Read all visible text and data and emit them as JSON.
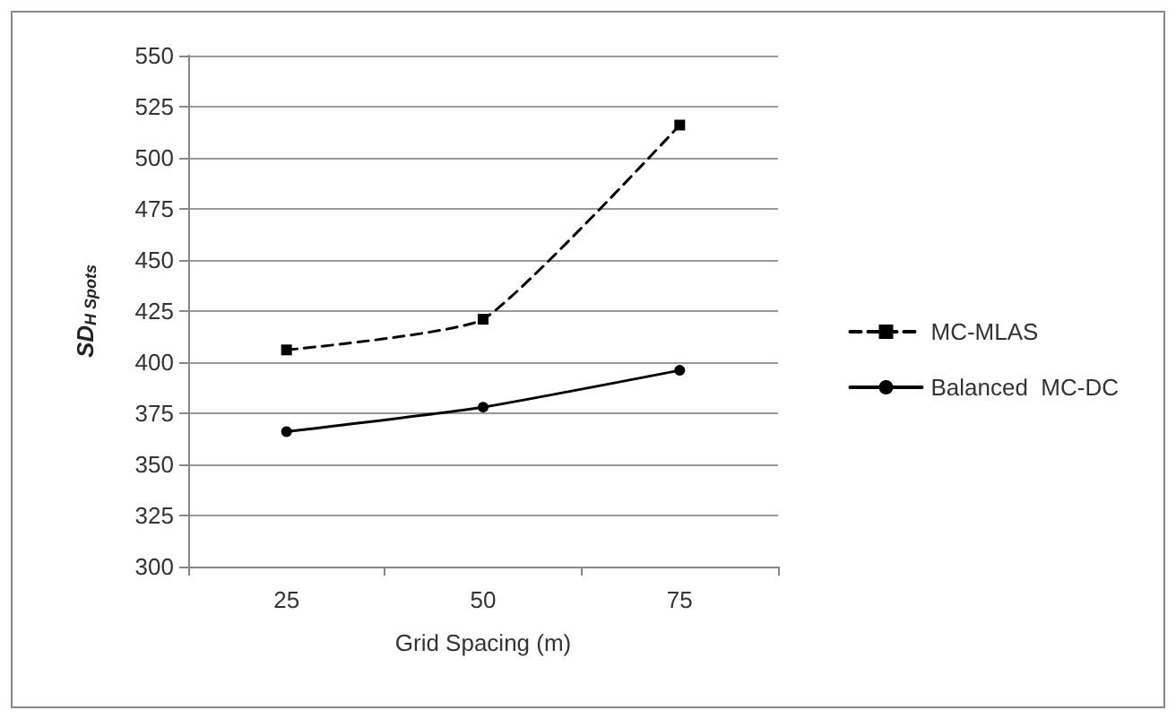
{
  "chart_data": {
    "type": "line",
    "xlabel": "Grid Spacing (m)",
    "ylabel": "SD$_{H Spots}$",
    "categories": [
      "25",
      "50",
      "75"
    ],
    "series": [
      {
        "name": "MC-MLAS",
        "color": "#000000",
        "values": [
          406,
          421,
          516
        ],
        "line_style": "dashed",
        "marker": "square"
      },
      {
        "name": "Balanced  MC-DC",
        "color": "#000000",
        "values": [
          366,
          378,
          396
        ],
        "line_style": "solid",
        "marker": "circle"
      }
    ],
    "ylim": [
      300,
      550
    ],
    "yticks": [
      300,
      325,
      350,
      375,
      400,
      425,
      450,
      475,
      500,
      525,
      550
    ],
    "grid": "y",
    "legend": "right"
  }
}
